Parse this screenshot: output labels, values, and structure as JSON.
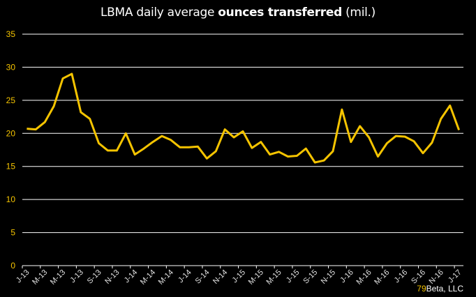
{
  "title": {
    "part1": "LBMA daily average ",
    "part2": "ounces transferred",
    "part3": " (mil.)"
  },
  "watermark": {
    "num": "79",
    "text": "Beta, LLC"
  },
  "colors": {
    "line": "#f5c400",
    "grid": "#ffffff",
    "background": "#000000",
    "ytick": "#f5c400",
    "xtick": "#e0e0e0"
  },
  "chart_data": {
    "type": "line",
    "title": "LBMA daily average ounces transferred (mil.)",
    "xlabel": "",
    "ylabel": "",
    "ylim": [
      0,
      35
    ],
    "yticks": [
      0,
      5,
      10,
      15,
      20,
      25,
      30,
      35
    ],
    "grid": true,
    "legend": "none",
    "x_tick_labels": [
      "J-13",
      "M-13",
      "M-13",
      "J-13",
      "S-13",
      "N-13",
      "J-14",
      "M-14",
      "M-14",
      "J-14",
      "S-14",
      "N-14",
      "J-15",
      "M-15",
      "M-15",
      "J-15",
      "S-15",
      "N-15",
      "J-16",
      "M-16",
      "M-16",
      "J-16",
      "S-16",
      "N-16",
      "J-17"
    ],
    "x": [
      "Jan-13",
      "Feb-13",
      "Mar-13",
      "Apr-13",
      "May-13",
      "Jun-13",
      "Jul-13",
      "Aug-13",
      "Sep-13",
      "Oct-13",
      "Nov-13",
      "Dec-13",
      "Jan-14",
      "Feb-14",
      "Mar-14",
      "Apr-14",
      "May-14",
      "Jun-14",
      "Jul-14",
      "Aug-14",
      "Sep-14",
      "Oct-14",
      "Nov-14",
      "Dec-14",
      "Jan-15",
      "Feb-15",
      "Mar-15",
      "Apr-15",
      "May-15",
      "Jun-15",
      "Jul-15",
      "Aug-15",
      "Sep-15",
      "Oct-15",
      "Nov-15",
      "Dec-15",
      "Jan-16",
      "Feb-16",
      "Mar-16",
      "Apr-16",
      "May-16",
      "Jun-16",
      "Jul-16",
      "Aug-16",
      "Sep-16",
      "Oct-16",
      "Nov-16",
      "Dec-16",
      "Jan-17"
    ],
    "series": [
      {
        "name": "Ounces transferred (mil.)",
        "values": [
          20.7,
          20.6,
          21.7,
          24.1,
          28.3,
          29.0,
          23.2,
          22.2,
          18.5,
          17.4,
          17.4,
          20.0,
          16.8,
          17.7,
          18.7,
          19.6,
          19.0,
          17.9,
          17.9,
          18.0,
          16.2,
          17.3,
          20.6,
          19.4,
          20.3,
          17.8,
          18.7,
          16.8,
          17.2,
          16.5,
          16.6,
          17.7,
          15.6,
          15.9,
          17.3,
          23.6,
          18.7,
          21.1,
          19.4,
          16.5,
          18.5,
          19.6,
          19.5,
          18.8,
          17.0,
          18.6,
          22.2,
          24.2,
          20.5
        ]
      }
    ]
  }
}
